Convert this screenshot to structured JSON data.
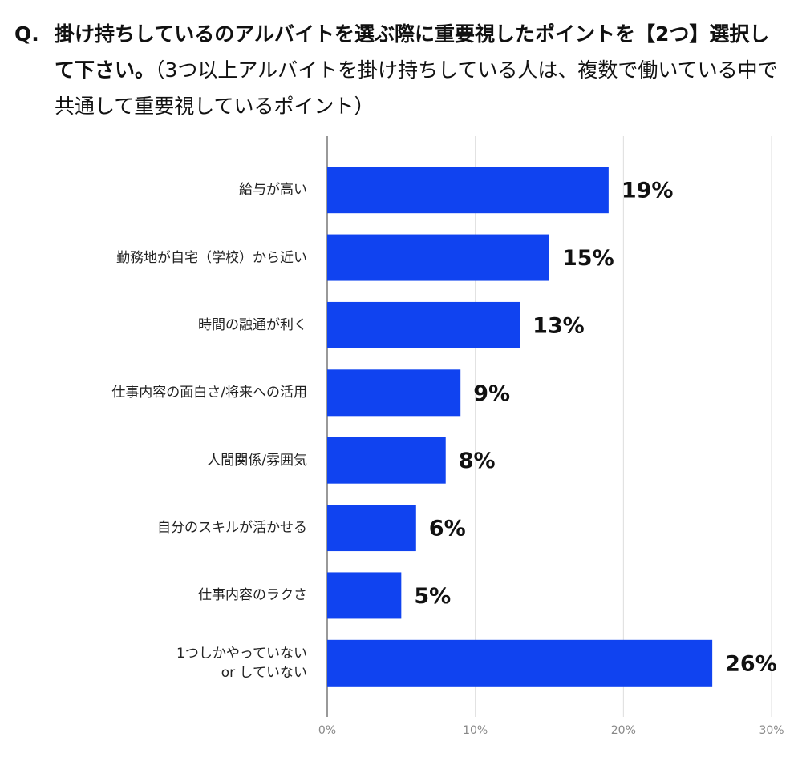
{
  "chart_data": {
    "type": "barh",
    "question_label": "Q.",
    "title": "掛け持ちしているのアルバイトを選ぶ際に重要視したポイントを【2つ】選択して下さい。",
    "subtitle": "（3つ以上アルバイトを掛け持ちしている人は、複数で働いている中で共通して重要視しているポイント）",
    "categories": [
      "給与が高い",
      "勤務地が自宅（学校）から近い",
      "時間の融通が利く",
      "仕事内容の面白さ/将来への活用",
      "人間関係/雰囲気",
      "自分のスキルが活かせる",
      "仕事内容のラクさ",
      "1つしかやっていない\nor していない"
    ],
    "values": [
      19,
      15,
      13,
      9,
      8,
      6,
      5,
      26
    ],
    "value_labels": [
      "19%",
      "15%",
      "13%",
      "9%",
      "8%",
      "6%",
      "5%",
      "26%"
    ],
    "color": "#1043f0",
    "xlim": [
      0,
      30
    ],
    "xticks": [
      {
        "value": 0,
        "label": "0%"
      },
      {
        "value": 10,
        "label": "10%"
      },
      {
        "value": 20,
        "label": "20%"
      },
      {
        "value": 30,
        "label": "30%"
      }
    ],
    "grid": true
  }
}
